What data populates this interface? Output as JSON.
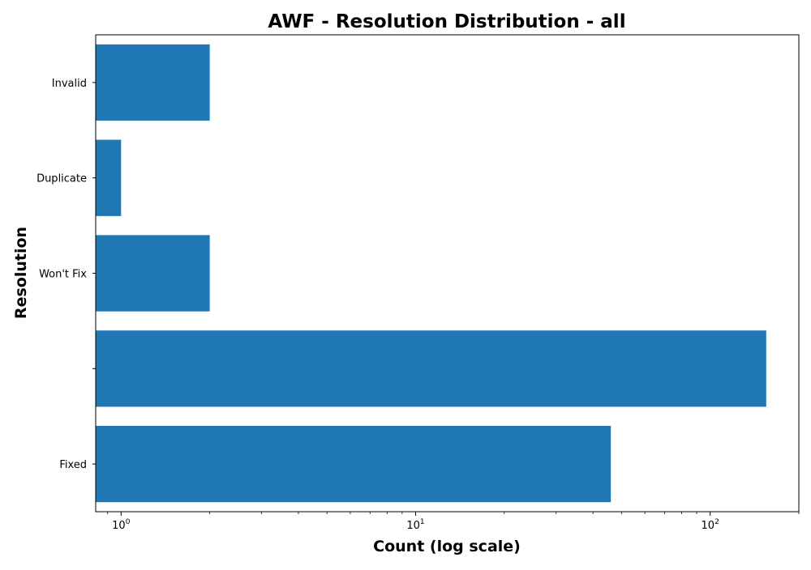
{
  "chart_data": {
    "type": "bar",
    "orientation": "horizontal",
    "title": "AWF - Resolution Distribution - all",
    "xlabel": "Count (log scale)",
    "ylabel": "Resolution",
    "x_scale": "log",
    "xlim": [
      0.82,
      200
    ],
    "x_ticks": [
      {
        "value": 1,
        "base": "10",
        "exp": "0"
      },
      {
        "value": 10,
        "base": "10",
        "exp": "1"
      },
      {
        "value": 100,
        "base": "10",
        "exp": "2"
      }
    ],
    "categories": [
      "Fixed",
      "",
      "Won't Fix",
      "Duplicate",
      "Invalid"
    ],
    "values": [
      46,
      155,
      2,
      1,
      2
    ],
    "bar_color": "#1f77b4",
    "grid": false,
    "legend": "none"
  }
}
